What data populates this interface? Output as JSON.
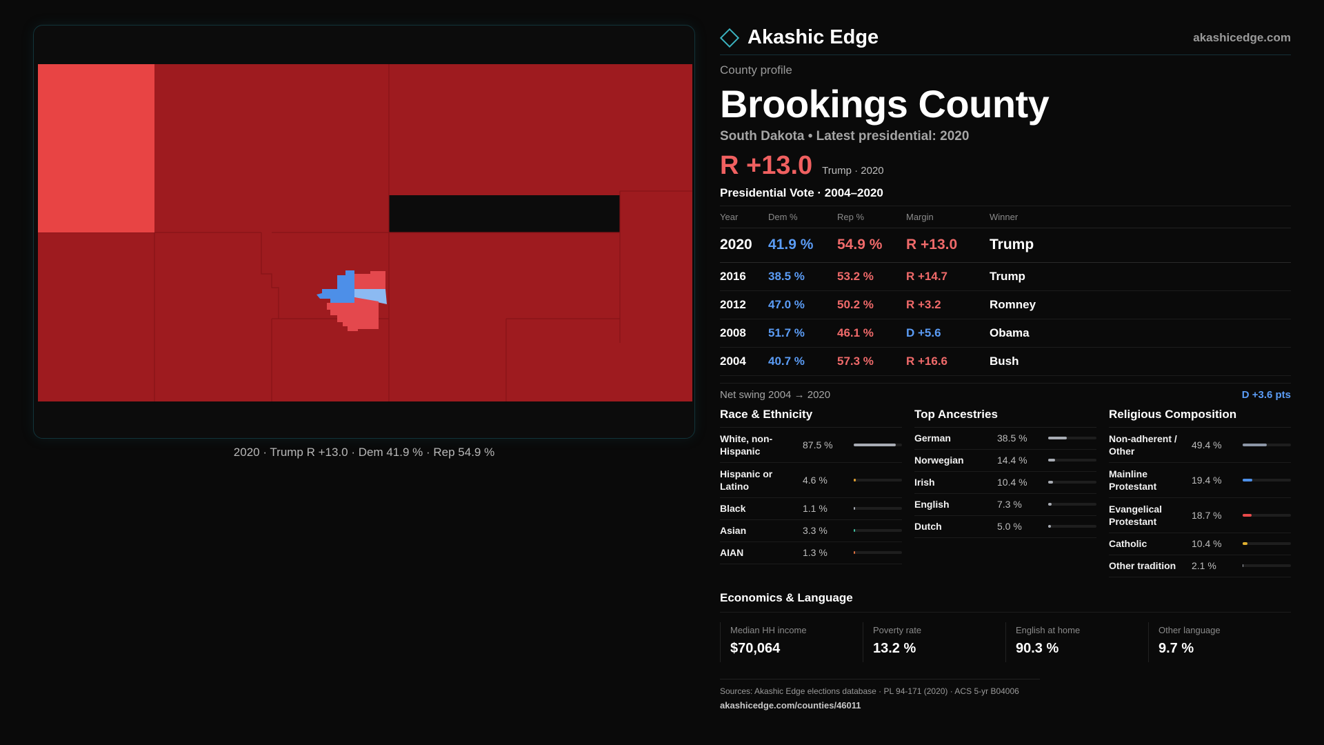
{
  "map": {
    "caption": "2020 · Trump R +13.0 · Dem 41.9 % · Rep 54.9 %",
    "colors": {
      "strong_rep": "#9e1b1f",
      "lean_rep": "#e84444",
      "town_rep": "#e4484d",
      "town_dem": "#4d8fe8",
      "town_dem_light": "#8cbaf2"
    }
  },
  "brand": {
    "name": "Akashic Edge",
    "site": "akashicedge.com",
    "accent": "#3bb3c0"
  },
  "profile": {
    "kicker": "County profile",
    "title": "Brookings County",
    "subtitle": "South Dakota • Latest presidential: 2020",
    "margin": "R +13.0",
    "margin_note": "Trump · 2020"
  },
  "votes": {
    "heading": "Presidential Vote · 2004–2020",
    "columns": [
      "Year",
      "Dem %",
      "Rep %",
      "Margin",
      "Winner"
    ],
    "rows": [
      {
        "year": "2020",
        "dem": "41.9 %",
        "rep": "54.9 %",
        "margin": "R +13.0",
        "winner": "Trump"
      },
      {
        "year": "2016",
        "dem": "38.5 %",
        "rep": "53.2 %",
        "margin": "R +14.7",
        "winner": "Trump"
      },
      {
        "year": "2012",
        "dem": "47.0 %",
        "rep": "50.2 %",
        "margin": "R +3.2",
        "winner": "Romney"
      },
      {
        "year": "2008",
        "dem": "51.7 %",
        "rep": "46.1 %",
        "margin": "D +5.6",
        "winner": "Obama"
      },
      {
        "year": "2004",
        "dem": "40.7 %",
        "rep": "57.3 %",
        "margin": "R +16.6",
        "winner": "Bush"
      }
    ],
    "swing_label": "Net swing 2004 → 2020",
    "swing_value": "D +3.6 pts"
  },
  "race": {
    "title": "Race & Ethnicity",
    "rows": [
      {
        "label": "White, non-Hispanic",
        "pct": "87.5 %",
        "value": 87.5,
        "color": "#a8acb4"
      },
      {
        "label": "Hispanic or Latino",
        "pct": "4.6 %",
        "value": 4.6,
        "color": "#e0a030"
      },
      {
        "label": "Black",
        "pct": "1.1 %",
        "value": 1.1,
        "color": "#a8acb4"
      },
      {
        "label": "Asian",
        "pct": "3.3 %",
        "value": 3.3,
        "color": "#3fbf9f"
      },
      {
        "label": "AIAN",
        "pct": "1.3 %",
        "value": 1.3,
        "color": "#e07040"
      }
    ]
  },
  "ancestry": {
    "title": "Top Ancestries",
    "rows": [
      {
        "label": "German",
        "pct": "38.5 %",
        "value": 38.5,
        "color": "#a8acb4"
      },
      {
        "label": "Norwegian",
        "pct": "14.4 %",
        "value": 14.4,
        "color": "#a8acb4"
      },
      {
        "label": "Irish",
        "pct": "10.4 %",
        "value": 10.4,
        "color": "#a8acb4"
      },
      {
        "label": "English",
        "pct": "7.3 %",
        "value": 7.3,
        "color": "#a8acb4"
      },
      {
        "label": "Dutch",
        "pct": "5.0 %",
        "value": 5.0,
        "color": "#a8acb4"
      }
    ]
  },
  "religion": {
    "title": "Religious Composition",
    "rows": [
      {
        "label": "Non-adherent / Other",
        "pct": "49.4 %",
        "value": 49.4,
        "color": "#8c96a6"
      },
      {
        "label": "Mainline Protestant",
        "pct": "19.4 %",
        "value": 19.4,
        "color": "#4d8fe8"
      },
      {
        "label": "Evangelical Protestant",
        "pct": "18.7 %",
        "value": 18.7,
        "color": "#e84a4a"
      },
      {
        "label": "Catholic",
        "pct": "10.4 %",
        "value": 10.4,
        "color": "#e0b030"
      },
      {
        "label": "Other tradition",
        "pct": "2.1 %",
        "value": 2.1,
        "color": "#a8acb4"
      }
    ]
  },
  "economics": {
    "title": "Economics & Language",
    "cells": [
      {
        "label": "Median HH income",
        "value": "$70,064"
      },
      {
        "label": "Poverty rate",
        "value": "13.2 %"
      },
      {
        "label": "English at home",
        "value": "90.3 %"
      },
      {
        "label": "Other language",
        "value": "9.7 %"
      }
    ]
  },
  "sources": {
    "line": "Sources: Akashic Edge elections database · PL 94-171 (2020) · ACS 5-yr B04006",
    "url": "akashicedge.com/counties/46011"
  }
}
